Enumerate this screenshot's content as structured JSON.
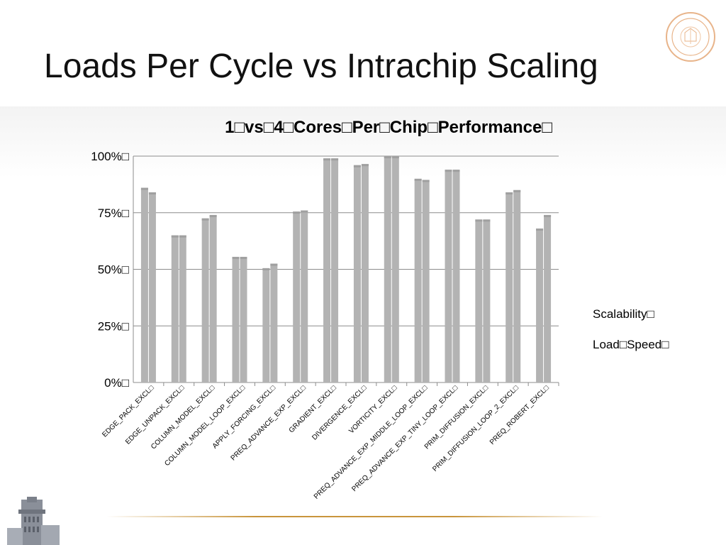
{
  "slide": {
    "title": "Loads Per Cycle vs Intrachip Scaling"
  },
  "chart_data": {
    "type": "bar",
    "title": "1□vs□4□Cores□Per□Chip□Performance□",
    "categories": [
      "EDGE_PACK_EXCL□",
      "EDGE_UNPACK_EXCL□",
      "COLUMN_MODEL_EXCL□",
      "COLUMN_MODEL_LOOP_EXCL□",
      "APPLY_FORCING_EXCL□",
      "PREQ_ADVANCE_EXP_EXCL□",
      "GRADIENT_EXCL□",
      "DIVERGENCE_EXCL□",
      "VORTICITY_EXCL□",
      "PREQ_ADVANCE_EXP_MIDDLE_LOOP_EXCL□",
      "PREQ_ADVANCE_EXP_TINY_LOOP_EXCL□",
      "PRIM_DIFFUSION_EXCL□",
      "PRIM_DIFFUSION_LOOP_2_EXCL□",
      "PREQ_ROBERT_EXCL□"
    ],
    "series": [
      {
        "name": "Scalability□",
        "values": [
          86,
          65,
          72.5,
          55.5,
          50.5,
          75.5,
          99,
          96,
          100,
          90,
          94,
          72,
          84,
          68
        ]
      },
      {
        "name": "Load□Speed□",
        "values": [
          84,
          65,
          74,
          55.5,
          52.5,
          76,
          99,
          96.5,
          100,
          89.5,
          94,
          72,
          85,
          74
        ]
      }
    ],
    "ylim": [
      0,
      100
    ],
    "yticks": [
      "0%□",
      "25%□",
      "50%□",
      "75%□",
      "100%□"
    ],
    "grid": true,
    "legend": "right",
    "colors": {
      "bar": "#b3b3b3",
      "grid": "#8c8c8c"
    }
  }
}
